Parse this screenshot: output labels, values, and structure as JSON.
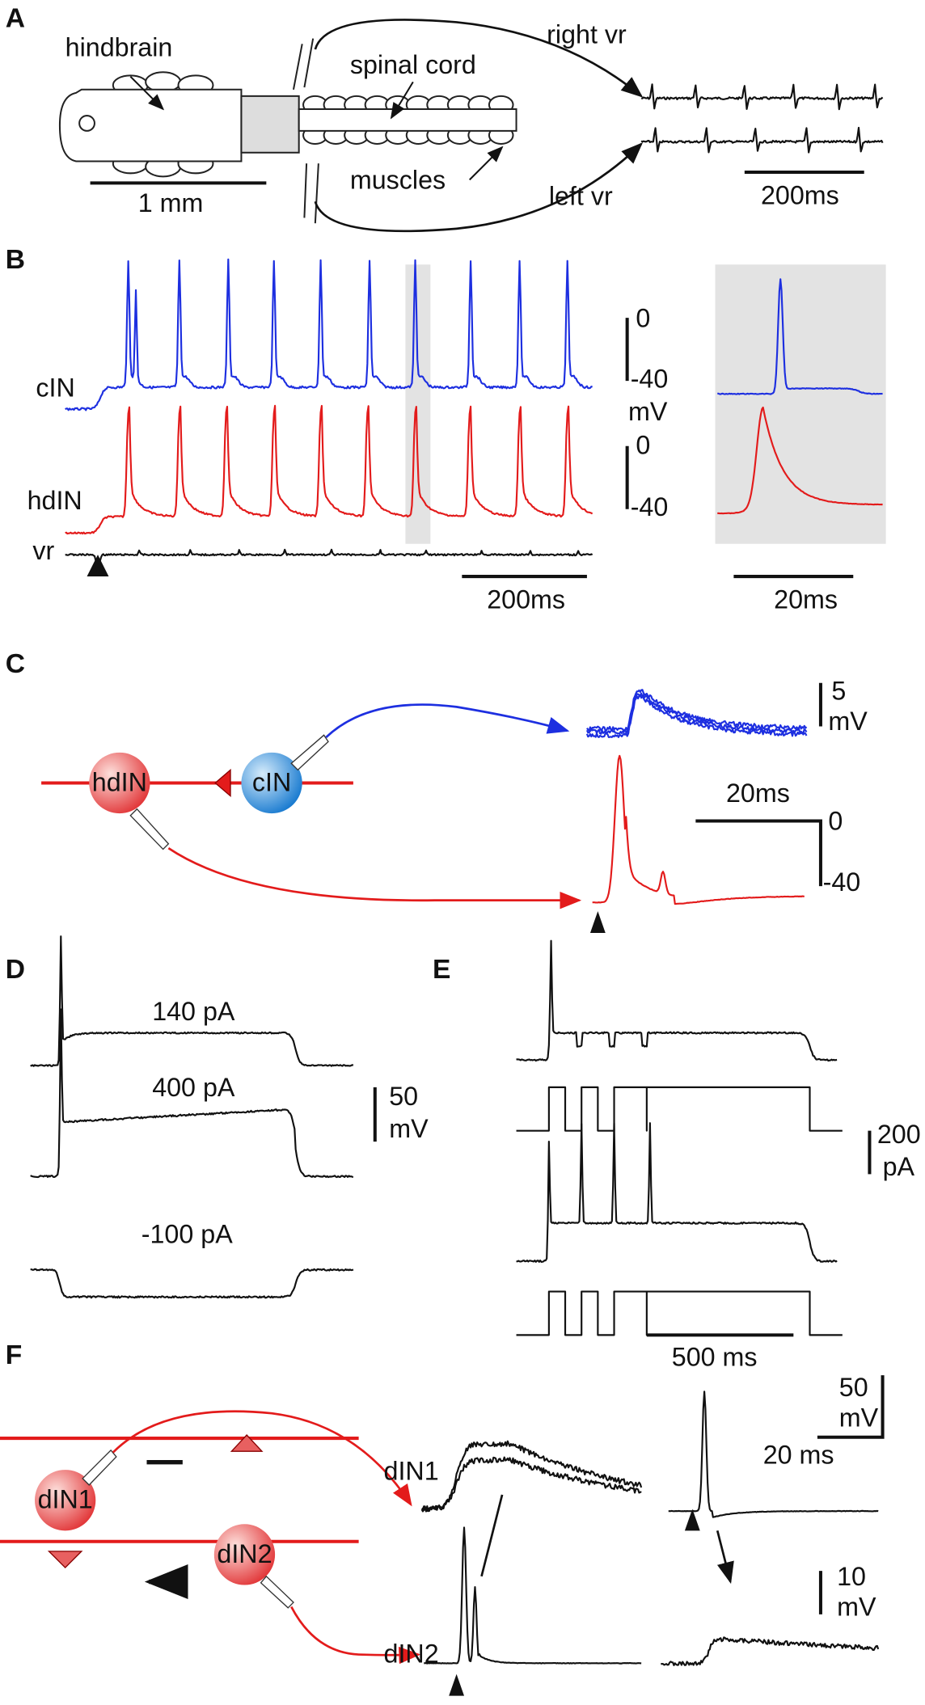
{
  "panels": {
    "A": {
      "label": "A",
      "hindbrain": "hindbrain",
      "spinal_cord": "spinal cord",
      "right_vr": "right vr",
      "muscles": "muscles",
      "left_vr": "left vr",
      "scale_mm": "1 mm",
      "scale_ms": "200ms"
    },
    "B": {
      "label": "B",
      "cin": "cIN",
      "hdin": "hdIN",
      "vr": "vr",
      "top_0": "0",
      "top_40": "-40",
      "unit": "mV",
      "bot_0": "0",
      "bot_40": "-40",
      "scale_left": "200ms",
      "scale_right": "20ms"
    },
    "C": {
      "label": "C",
      "hdin": "hdIN",
      "cin": "cIN",
      "scale_5": "5",
      "unit": "mV",
      "scale_ms": "20ms",
      "v0": "0",
      "v40": "-40"
    },
    "D": {
      "label": "D",
      "i140": "140 pA",
      "i400": "400 pA",
      "i100": "-100 pA",
      "scale_50": "50",
      "unit": "mV"
    },
    "E": {
      "label": "E",
      "scale_200": "200",
      "unit": "pA",
      "scale_ms": "500 ms"
    },
    "F": {
      "label": "F",
      "din1": "dIN1",
      "din2": "dIN2",
      "trace_din1": "dIN1",
      "trace_din2": "dIN2",
      "scale_50": "50",
      "unit_top": "mV",
      "scale_ms": "20 ms",
      "scale_10": "10",
      "unit_bot": "mV"
    }
  }
}
